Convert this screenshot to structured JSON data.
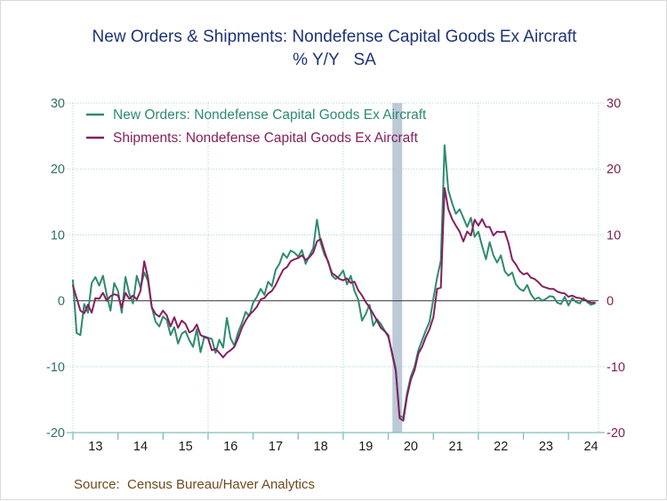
{
  "title": {
    "line1": "New Orders & Shipments: Nondefense Capital Goods Ex Aircraft",
    "line2": "% Y/Y   SA"
  },
  "source": "Source:  Census Bureau/Haver Analytics",
  "colors": {
    "title": "#1f3378",
    "new_orders_line": "#2e8b6e",
    "shipments_line": "#85205e",
    "left_axis_labels": "#2f7065",
    "right_axis_labels": "#7d2150",
    "x_axis_labels": "#1a1a1a",
    "gridline": "#a8d5d0",
    "axis_line": "#7ec0b8",
    "zero_line": "#3c3c3c",
    "recession_band": "#bcc9d6",
    "source_text": "#6e4a1f",
    "background": "#ffffff"
  },
  "chart_data": {
    "type": "line",
    "title": "New Orders & Shipments: Nondefense Capital Goods Ex Aircraft",
    "subtitle": "% Y/Y SA",
    "ylabel": "% Y/Y",
    "ylim": [
      -20,
      30
    ],
    "y_ticks": [
      30,
      20,
      10,
      0,
      -10,
      -20
    ],
    "y_gridlines": [
      30,
      20,
      10,
      -10
    ],
    "grid": "horizontal-dotted, vertical at 2016/2019/2022",
    "legend_position": "top-left-inside",
    "x_start": "2013-01",
    "x_end": "2024-08",
    "frequency": "monthly",
    "x_tick_labels": [
      "13",
      "14",
      "15",
      "16",
      "17",
      "18",
      "19",
      "20",
      "21",
      "22",
      "23",
      "24"
    ],
    "vertical_gridline_month_indices": [
      36,
      72,
      108
    ],
    "recession_band": {
      "label": "2020 recession",
      "from_month_index": 85.1,
      "to_month_index": 87.7
    },
    "series": [
      {
        "name": "New Orders: Nondefense Capital Goods Ex Aircraft",
        "color": "#2e8b6e",
        "values": [
          3.1,
          -4.9,
          -5.2,
          -0.5,
          -1.8,
          2.7,
          3.6,
          2.3,
          3.8,
          0.9,
          -1.5,
          2.7,
          1.5,
          -1.8,
          3.6,
          1.1,
          -0.4,
          3.8,
          2.0,
          4.3,
          3.0,
          -1.0,
          -3.2,
          -3.9,
          -2.4,
          -2.9,
          -5.2,
          -4.0,
          -6.5,
          -5.0,
          -4.6,
          -6.0,
          -7.0,
          -4.3,
          -7.8,
          -5.4,
          -5.6,
          -5.8,
          -7.9,
          -5.9,
          -7.1,
          -2.6,
          -5.7,
          -6.8,
          -4.8,
          -3.4,
          -1.7,
          -2.3,
          -0.3,
          0.6,
          1.8,
          0.9,
          2.9,
          2.2,
          4.7,
          5.6,
          7.2,
          6.5,
          7.6,
          7.3,
          6.7,
          7.7,
          5.6,
          6.8,
          8.0,
          12.3,
          8.8,
          7.0,
          6.0,
          3.8,
          3.3,
          3.8,
          4.6,
          2.5,
          3.8,
          1.5,
          0.2,
          -3.0,
          -2.0,
          -0.6,
          -3.8,
          -2.8,
          -3.5,
          -4.5,
          -5.5,
          -7.8,
          -10.3,
          -17.5,
          -17.7,
          -14.0,
          -11.5,
          -10.0,
          -7.5,
          -6.0,
          -4.5,
          -3.2,
          0.3,
          3.5,
          6.1,
          23.6,
          16.8,
          14.8,
          13.2,
          13.9,
          12.6,
          11.2,
          12.6,
          9.7,
          10.5,
          8.3,
          6.3,
          8.9,
          6.9,
          5.8,
          6.9,
          4.5,
          3.8,
          4.3,
          2.5,
          1.8,
          1.5,
          2.4,
          1.0,
          0.2,
          0.5,
          0.0,
          0.3,
          0.7,
          0.6,
          -0.3,
          -0.5,
          0.6,
          -0.7,
          0.4,
          -0.2,
          -0.4,
          0.4,
          -0.2,
          -0.6,
          -0.4
        ]
      },
      {
        "name": "Shipments: Nondefense Capital Goods Ex Aircraft",
        "color": "#85205e",
        "values": [
          2.3,
          0.4,
          -1.5,
          -1.9,
          -0.6,
          -1.8,
          0.4,
          0.3,
          1.2,
          0.0,
          0.7,
          1.0,
          0.8,
          -1.0,
          1.2,
          0.3,
          0.8,
          0.2,
          1.5,
          6.0,
          3.5,
          -1.0,
          -2.0,
          -2.4,
          -1.5,
          -2.2,
          -3.9,
          -2.5,
          -4.1,
          -3.0,
          -3.5,
          -4.8,
          -4.5,
          -3.6,
          -5.2,
          -5.5,
          -5.7,
          -7.5,
          -7.3,
          -7.9,
          -8.6,
          -7.9,
          -7.5,
          -7.0,
          -5.7,
          -4.1,
          -3.0,
          -2.1,
          -1.6,
          -0.9,
          0.2,
          0.4,
          1.1,
          1.5,
          2.4,
          3.6,
          4.7,
          5.1,
          6.0,
          6.3,
          6.5,
          6.9,
          6.2,
          6.6,
          7.3,
          9.0,
          9.4,
          7.5,
          5.8,
          4.2,
          3.8,
          3.3,
          3.1,
          3.4,
          2.7,
          2.9,
          1.6,
          0.8,
          -0.2,
          -1.0,
          -2.0,
          -3.0,
          -4.1,
          -4.6,
          -5.2,
          -8.0,
          -10.6,
          -17.8,
          -18.2,
          -14.5,
          -12.0,
          -10.5,
          -8.0,
          -7.0,
          -5.5,
          -4.3,
          -2.5,
          1.8,
          2.0,
          17.1,
          13.9,
          12.4,
          11.4,
          10.5,
          9.0,
          10.5,
          9.9,
          12.3,
          11.4,
          12.4,
          11.2,
          11.2,
          9.9,
          10.5,
          10.4,
          10.5,
          8.8,
          6.3,
          5.5,
          4.5,
          4.0,
          4.2,
          3.5,
          3.3,
          2.8,
          2.2,
          2.0,
          1.8,
          1.8,
          1.4,
          1.2,
          1.1,
          0.6,
          0.8,
          0.5,
          0.4,
          0.2,
          0.0,
          -0.3,
          -0.3
        ]
      }
    ]
  }
}
